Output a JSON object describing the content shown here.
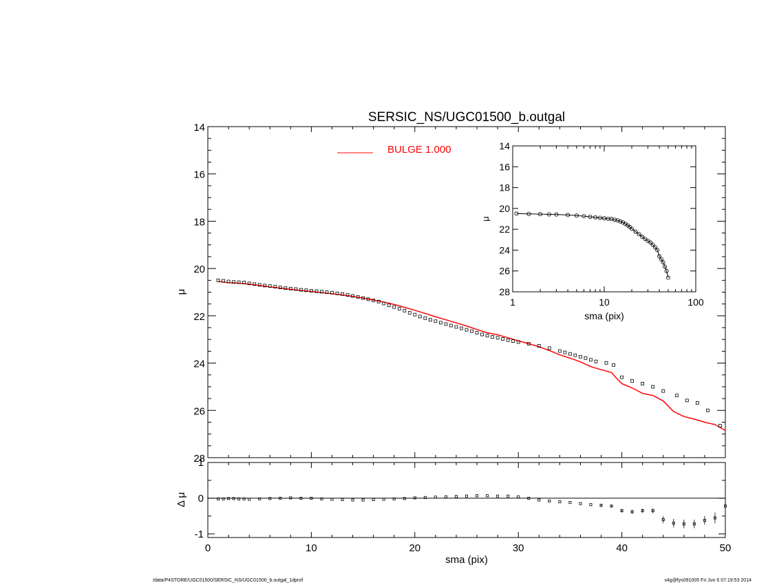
{
  "footer": {
    "left": "/data/P4STORE/UGC01500/SERSIC_NS/UGC01500_b.outgal_1dprof",
    "right": "s4g@fys091005  Fri Jun  6 07:19:53 2014"
  },
  "chart_data": [
    {
      "type": "scatter",
      "title": "SERSIC_NS/UGC01500_b.outgal",
      "xlabel": "",
      "ylabel": "μ",
      "xlim": [
        0,
        50
      ],
      "ylim": [
        28,
        14
      ],
      "xticks": [
        0,
        10,
        20,
        30,
        40,
        50
      ],
      "yticks": [
        14,
        16,
        18,
        20,
        22,
        24,
        26,
        28
      ],
      "legend": {
        "label": "BULGE  1.000",
        "color": "#ff0000",
        "placement": "top-center"
      },
      "series": [
        {
          "name": "",
          "style": "square-markers",
          "color": "#000000",
          "x": [
            1.0,
            1.5,
            2.0,
            2.5,
            3.0,
            3.5,
            4.0,
            4.5,
            5.0,
            5.5,
            6.0,
            6.5,
            7.0,
            7.5,
            8.0,
            8.5,
            9.0,
            9.5,
            10.0,
            10.5,
            11.0,
            11.5,
            12.0,
            12.5,
            13.0,
            13.5,
            14.0,
            14.5,
            15.0,
            15.5,
            16.0,
            16.5,
            17.0,
            17.5,
            18.0,
            18.5,
            19.0,
            19.5,
            20.0,
            20.5,
            21.0,
            21.5,
            22.0,
            22.5,
            23.0,
            23.5,
            24.0,
            24.5,
            25.0,
            25.5,
            26.0,
            26.5,
            27.0,
            27.5,
            28.0,
            28.5,
            29.0,
            29.5,
            30.0,
            31.0,
            32.0,
            33.0,
            34.0,
            34.5,
            35.0,
            35.5,
            36.0,
            36.5,
            37.0,
            37.5,
            38.5,
            39.2,
            40.0,
            41.0,
            42.0,
            43.0,
            44.0,
            45.3,
            46.3,
            47.3,
            48.3,
            49.5
          ],
          "y": [
            20.5,
            20.52,
            20.55,
            20.57,
            20.58,
            20.59,
            20.63,
            20.66,
            20.69,
            20.72,
            20.74,
            20.77,
            20.8,
            20.83,
            20.85,
            20.87,
            20.9,
            20.92,
            20.94,
            20.96,
            20.98,
            21.0,
            21.02,
            21.05,
            21.08,
            21.12,
            21.16,
            21.2,
            21.25,
            21.3,
            21.35,
            21.4,
            21.48,
            21.56,
            21.63,
            21.7,
            21.78,
            21.87,
            21.95,
            22.03,
            22.1,
            22.17,
            22.23,
            22.29,
            22.35,
            22.41,
            22.47,
            22.53,
            22.59,
            22.65,
            22.72,
            22.79,
            22.84,
            22.89,
            22.93,
            22.98,
            23.03,
            23.07,
            23.11,
            23.18,
            23.27,
            23.37,
            23.49,
            23.55,
            23.61,
            23.67,
            23.73,
            23.79,
            23.86,
            23.93,
            23.99,
            24.08,
            24.6,
            24.75,
            24.87,
            25.0,
            25.18,
            25.37,
            25.58,
            25.68,
            26.0,
            26.65
          ]
        },
        {
          "name": "BULGE  1.000",
          "style": "line",
          "color": "#ff0000",
          "x": [
            1.0,
            2.0,
            3.0,
            4.0,
            5.0,
            6.0,
            7.0,
            8.0,
            9.0,
            10.0,
            11.0,
            12.0,
            13.0,
            14.0,
            15.0,
            16.0,
            17.0,
            18.0,
            19.0,
            20.0,
            21.0,
            22.0,
            23.0,
            24.0,
            25.0,
            26.0,
            27.0,
            28.0,
            29.0,
            30.0,
            31.0,
            32.0,
            33.0,
            34.0,
            35.0,
            36.0,
            37.0,
            38.0,
            39.0,
            39.5,
            40.0,
            41.0,
            42.0,
            43.0,
            44.0,
            45.0,
            46.0,
            47.0,
            48.0,
            49.0,
            50.0
          ],
          "y": [
            20.55,
            20.6,
            20.62,
            20.66,
            20.72,
            20.78,
            20.83,
            20.88,
            20.93,
            20.97,
            21.02,
            21.07,
            21.12,
            21.18,
            21.25,
            21.33,
            21.42,
            21.52,
            21.64,
            21.77,
            21.9,
            22.04,
            22.17,
            22.3,
            22.43,
            22.58,
            22.72,
            22.8,
            22.93,
            23.06,
            23.18,
            23.31,
            23.47,
            23.65,
            23.79,
            23.95,
            24.15,
            24.28,
            24.4,
            24.65,
            24.87,
            25.05,
            25.28,
            25.37,
            25.6,
            26.05,
            26.26,
            26.37,
            26.5,
            26.6,
            26.85
          ]
        }
      ]
    },
    {
      "type": "scatter",
      "title": "",
      "xlabel": "sma (pix)",
      "ylabel": "Δ μ",
      "xlim": [
        0,
        50
      ],
      "ylim": [
        -1.1,
        1.0
      ],
      "xticks": [
        0,
        10,
        20,
        30,
        40,
        50
      ],
      "yticks": [
        1,
        0,
        -1
      ],
      "series": [
        {
          "name": "",
          "style": "square-markers-with-errorbars",
          "color": "#000000",
          "x": [
            1.0,
            1.5,
            2.0,
            2.5,
            3.0,
            3.5,
            4.0,
            5.0,
            6.0,
            7.0,
            8.0,
            9.0,
            10.0,
            11.0,
            12.0,
            13.0,
            14.0,
            15.0,
            16.0,
            17.0,
            18.0,
            19.0,
            20.0,
            21.0,
            22.0,
            23.0,
            24.0,
            25.0,
            26.0,
            27.0,
            28.0,
            29.0,
            30.0,
            31.0,
            32.0,
            33.0,
            34.0,
            35.0,
            36.0,
            37.0,
            38.0,
            39.0,
            40.0,
            41.0,
            42.0,
            43.0,
            44.0,
            45.0,
            46.0,
            47.0,
            48.0,
            49.0,
            50.0
          ],
          "y": [
            -0.02,
            -0.02,
            -0.01,
            -0.01,
            -0.02,
            -0.02,
            -0.03,
            -0.02,
            -0.01,
            0.0,
            0.01,
            0.0,
            0.0,
            -0.02,
            -0.03,
            -0.04,
            -0.05,
            -0.05,
            -0.04,
            -0.03,
            -0.02,
            -0.01,
            0.01,
            0.02,
            0.03,
            0.04,
            0.05,
            0.06,
            0.07,
            0.07,
            0.06,
            0.06,
            0.04,
            0.0,
            -0.05,
            -0.08,
            -0.1,
            -0.12,
            -0.15,
            -0.18,
            -0.2,
            -0.22,
            -0.35,
            -0.38,
            -0.35,
            -0.35,
            -0.6,
            -0.7,
            -0.72,
            -0.72,
            -0.62,
            -0.55,
            -0.22
          ],
          "errors": [
            0.01,
            0.01,
            0.01,
            0.01,
            0.01,
            0.01,
            0.01,
            0.01,
            0.01,
            0.01,
            0.01,
            0.01,
            0.01,
            0.01,
            0.01,
            0.01,
            0.01,
            0.01,
            0.01,
            0.01,
            0.01,
            0.01,
            0.01,
            0.01,
            0.01,
            0.01,
            0.01,
            0.01,
            0.01,
            0.01,
            0.01,
            0.01,
            0.01,
            0.01,
            0.02,
            0.02,
            0.02,
            0.02,
            0.02,
            0.02,
            0.03,
            0.03,
            0.05,
            0.05,
            0.06,
            0.07,
            0.1,
            0.12,
            0.12,
            0.12,
            0.12,
            0.15,
            0.3
          ]
        }
      ]
    },
    {
      "type": "scatter",
      "title": "",
      "xlabel": "sma (pix)",
      "ylabel": "μ",
      "xscale": "log",
      "xlim": [
        1,
        100
      ],
      "ylim": [
        28,
        14
      ],
      "xticks": [
        1,
        10,
        100
      ],
      "yticks": [
        14,
        16,
        18,
        20,
        22,
        24,
        26,
        28
      ],
      "series": [
        {
          "name": "",
          "style": "circle-markers-with-line",
          "color": "#000000",
          "x": [
            1.1,
            1.5,
            2.0,
            2.5,
            3.0,
            4.0,
            5.0,
            6.0,
            7.0,
            8.0,
            9.0,
            10.0,
            11.0,
            12.0,
            13.0,
            14.0,
            15.0,
            16.0,
            17.0,
            18.0,
            19.0,
            20.0,
            22.0,
            24.0,
            26.0,
            28.0,
            30.0,
            32.0,
            34.0,
            36.0,
            38.0,
            40.0,
            42.0,
            44.0,
            46.0,
            48.0,
            50.0
          ],
          "y": [
            20.5,
            20.52,
            20.55,
            20.57,
            20.58,
            20.63,
            20.69,
            20.74,
            20.8,
            20.85,
            20.9,
            20.94,
            20.98,
            21.02,
            21.08,
            21.16,
            21.25,
            21.35,
            21.48,
            21.63,
            21.78,
            21.95,
            22.23,
            22.47,
            22.72,
            22.93,
            23.11,
            23.27,
            23.49,
            23.73,
            23.99,
            24.6,
            24.87,
            25.18,
            25.58,
            26.0,
            26.65
          ]
        }
      ]
    }
  ]
}
